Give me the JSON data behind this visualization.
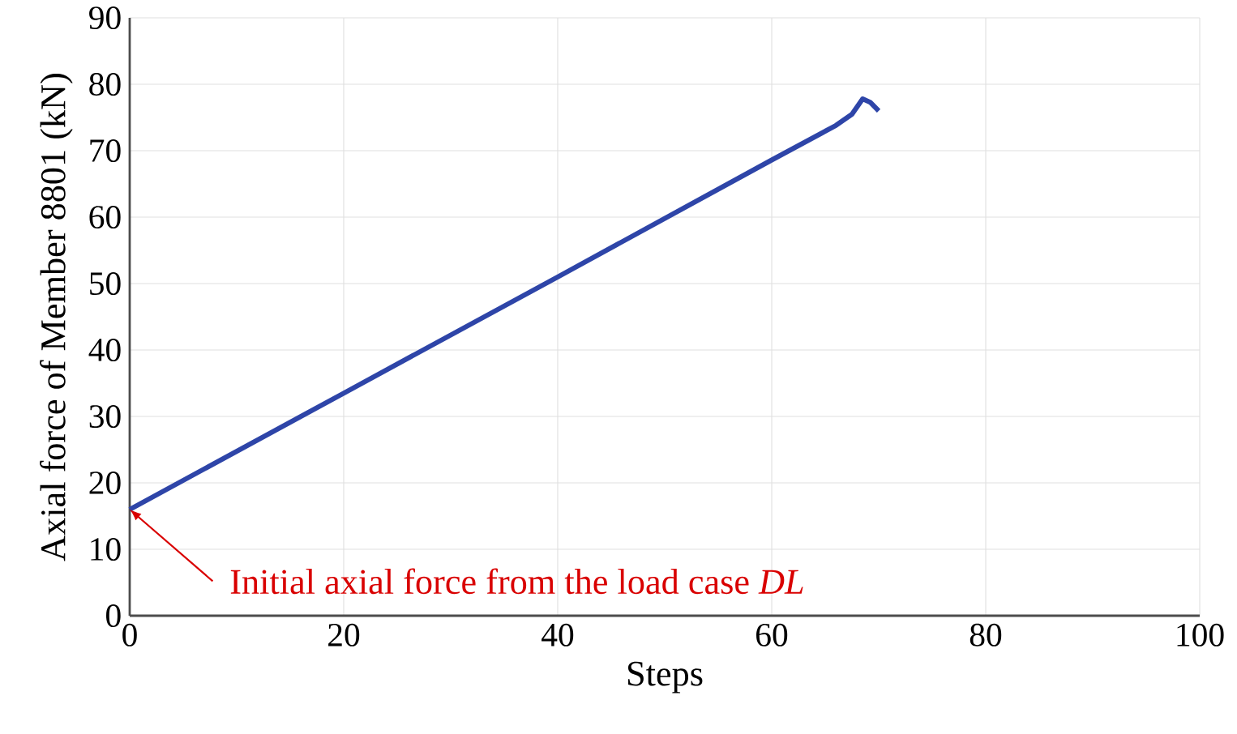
{
  "chart_data": {
    "type": "line",
    "xlabel": "Steps",
    "ylabel": "Axial force of Member 8801 (kN)",
    "x": [
      0,
      20,
      40,
      60,
      66,
      67.5,
      68.5,
      69.2,
      70
    ],
    "series": [
      {
        "color": "#2e45a8",
        "values": [
          16,
          33.5,
          51,
          68.6,
          73.8,
          75.5,
          77.8,
          77.3,
          76
        ]
      }
    ],
    "xlim": [
      0,
      100
    ],
    "ylim": [
      0,
      90
    ],
    "xticks": [
      0,
      20,
      40,
      60,
      80,
      100
    ],
    "yticks": [
      0,
      10,
      20,
      30,
      40,
      50,
      60,
      70,
      80,
      90
    ],
    "grid": true,
    "marker": "none",
    "line_style": "solid",
    "annotations": [
      {
        "text": "Initial axial force from the load case *DL*",
        "x": 0,
        "y": 16
      }
    ]
  }
}
